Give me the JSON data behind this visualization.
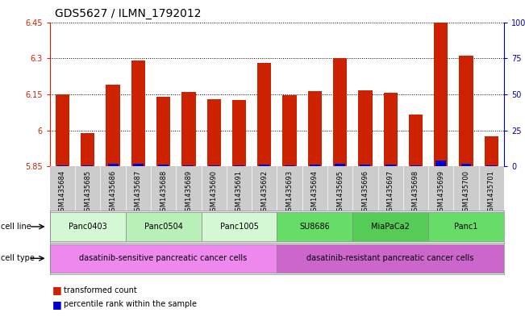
{
  "title": "GDS5627 / ILMN_1792012",
  "samples": [
    "GSM1435684",
    "GSM1435685",
    "GSM1435686",
    "GSM1435687",
    "GSM1435688",
    "GSM1435689",
    "GSM1435690",
    "GSM1435691",
    "GSM1435692",
    "GSM1435693",
    "GSM1435694",
    "GSM1435695",
    "GSM1435696",
    "GSM1435697",
    "GSM1435698",
    "GSM1435699",
    "GSM1435700",
    "GSM1435701"
  ],
  "red_values": [
    6.15,
    5.99,
    6.19,
    6.29,
    6.14,
    6.16,
    6.13,
    6.125,
    6.28,
    6.148,
    6.162,
    6.3,
    6.165,
    6.155,
    6.065,
    6.45,
    6.31,
    5.975
  ],
  "blue_values": [
    5.855,
    5.855,
    5.862,
    5.862,
    5.857,
    5.856,
    5.856,
    5.856,
    5.858,
    5.856,
    5.857,
    5.862,
    5.858,
    5.857,
    5.856,
    5.875,
    5.862,
    5.855
  ],
  "ymin": 5.85,
  "ymax": 6.45,
  "yticks": [
    5.85,
    6.0,
    6.15,
    6.3,
    6.45
  ],
  "ytick_labels": [
    "5.85",
    "6",
    "6.15",
    "6.3",
    "6.45"
  ],
  "right_yticks": [
    0,
    25,
    50,
    75,
    100
  ],
  "right_ytick_labels": [
    "0",
    "25",
    "50",
    "75",
    "100%"
  ],
  "cell_line_groups": [
    {
      "label": "Panc0403",
      "start": 0,
      "end": 2,
      "color": "#d4f7d4"
    },
    {
      "label": "Panc0504",
      "start": 3,
      "end": 5,
      "color": "#b8f0b8"
    },
    {
      "label": "Panc1005",
      "start": 6,
      "end": 8,
      "color": "#d4f7d4"
    },
    {
      "label": "SU8686",
      "start": 9,
      "end": 11,
      "color": "#66dd66"
    },
    {
      "label": "MiaPaCa2",
      "start": 12,
      "end": 14,
      "color": "#55cc55"
    },
    {
      "label": "Panc1",
      "start": 15,
      "end": 17,
      "color": "#66dd66"
    }
  ],
  "cell_type_groups": [
    {
      "label": "dasatinib-sensitive pancreatic cancer cells",
      "start": 0,
      "end": 8,
      "color": "#ee88ee"
    },
    {
      "label": "dasatinib-resistant pancreatic cancer cells",
      "start": 9,
      "end": 17,
      "color": "#cc66cc"
    }
  ],
  "xtick_bg_color": "#cccccc",
  "bar_color": "#cc2200",
  "blue_color": "#0000cc",
  "bar_width": 0.55,
  "left_axis_color": "#cc2200",
  "right_axis_color": "#0000bb",
  "title_fontsize": 10,
  "tick_fontsize": 7,
  "bar_tick_fontsize": 6,
  "label_fontsize": 7.5
}
